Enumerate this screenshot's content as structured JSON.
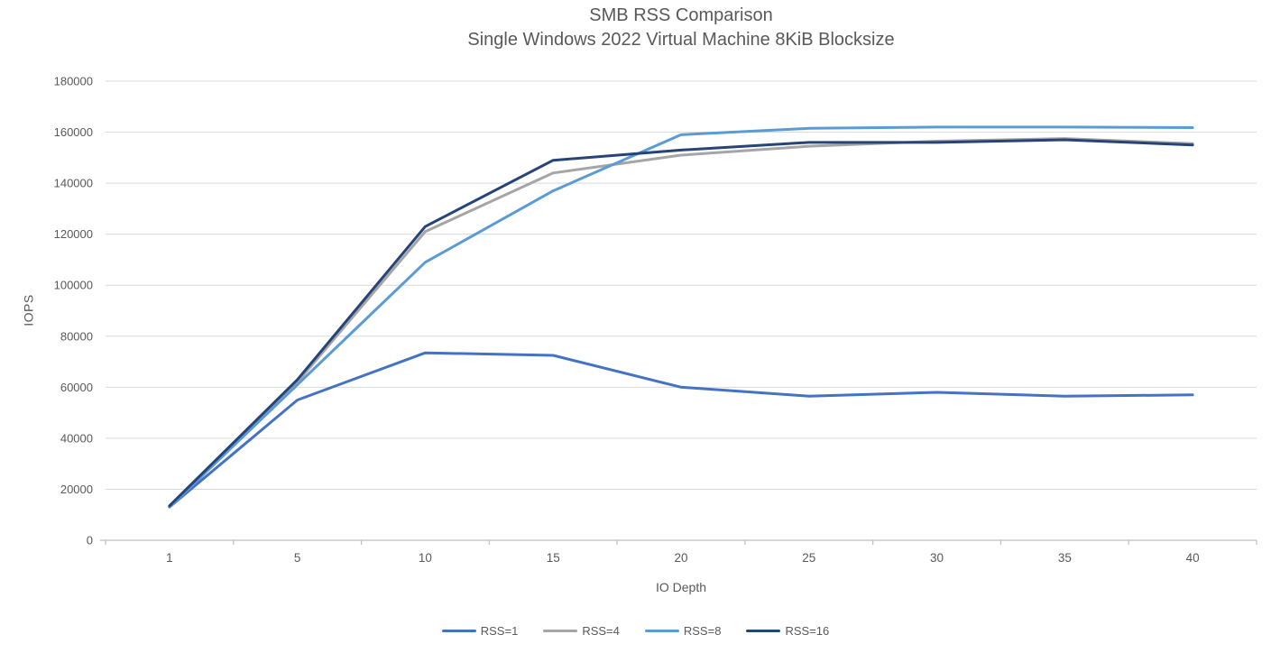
{
  "chart_data": {
    "type": "line",
    "title": "SMB RSS Comparison",
    "subtitle": "Single Windows 2022 Virtual Machine 8KiB Blocksize",
    "xlabel": "IO Depth",
    "ylabel": "IOPS",
    "categories": [
      1,
      5,
      10,
      15,
      20,
      25,
      30,
      35,
      40
    ],
    "series": [
      {
        "name": "RSS=1",
        "color": "#4472C4",
        "values": [
          13000,
          55000,
          73500,
          72500,
          60000,
          56500,
          58000,
          56500,
          57000
        ]
      },
      {
        "name": "RSS=4",
        "color": "#A5A5A5",
        "values": [
          13000,
          62000,
          121000,
          144000,
          151000,
          154500,
          156500,
          157500,
          155500
        ]
      },
      {
        "name": "RSS=8",
        "color": "#5B9BD5",
        "values": [
          13000,
          61000,
          109000,
          137000,
          159000,
          161500,
          162000,
          162000,
          161800
        ]
      },
      {
        "name": "RSS=16",
        "color": "#264478",
        "values": [
          13500,
          63000,
          123000,
          149000,
          153000,
          156000,
          156000,
          157000,
          155000
        ]
      }
    ],
    "y_axis": {
      "min": 0,
      "max": 180000,
      "step": 20000
    },
    "x_axis_type": "categorical",
    "grid": true,
    "legend_position": "bottom",
    "colors": {
      "grid": "#D9D9D9",
      "axis": "#BFBFBF",
      "text": "#595959",
      "background": "#FFFFFF"
    }
  }
}
